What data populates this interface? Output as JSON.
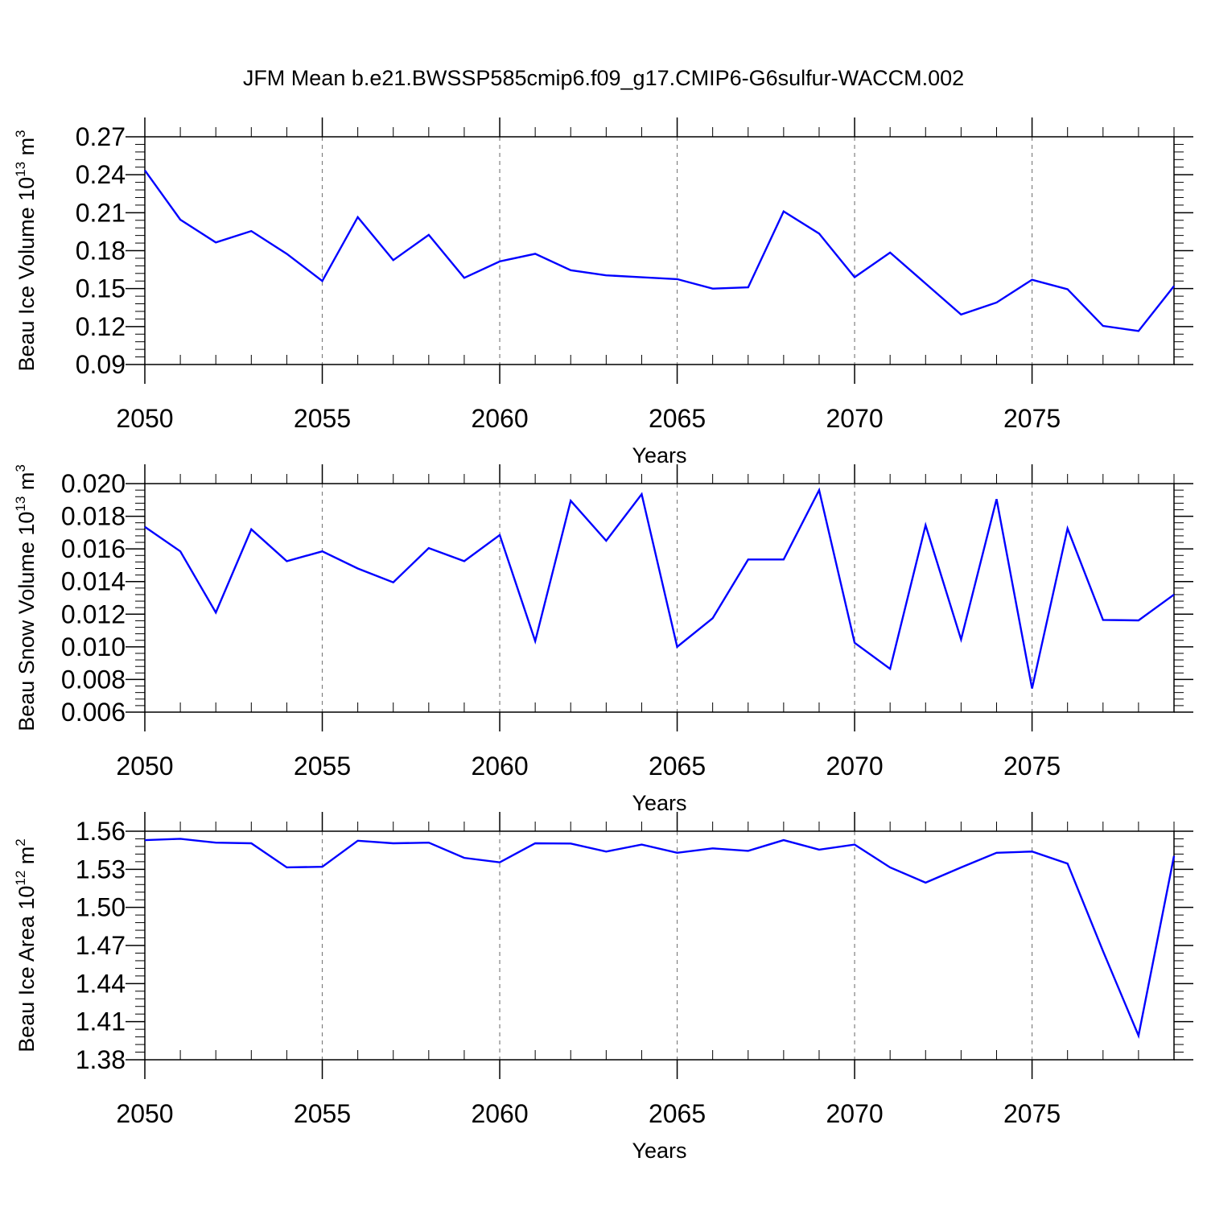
{
  "title": "JFM Mean b.e21.BWSSP585cmip6.f09_g17.CMIP6-G6sulfur-WACCM.002",
  "colors": {
    "line": "#0000ff",
    "axes": "#000000",
    "grid": "#808080"
  },
  "chart_data": [
    {
      "type": "line",
      "ylabel": {
        "main": "Beau Ice Volume 10",
        "exponent": "13",
        "unit": " m",
        "unit_exponent": "3"
      },
      "xlabel": "Years",
      "xlim": [
        2050,
        2079
      ],
      "ylim": [
        0.09,
        0.27
      ],
      "x_ticks": [
        "2050",
        "2055",
        "2060",
        "2065",
        "2070",
        "2075"
      ],
      "y_ticks": [
        "0.09",
        "0.12",
        "0.15",
        "0.18",
        "0.21",
        "0.24",
        "0.27"
      ],
      "grid": "vertical dashed at major x ticks",
      "x": [
        2050,
        2051,
        2052,
        2053,
        2054,
        2055,
        2056,
        2057,
        2058,
        2059,
        2060,
        2061,
        2062,
        2063,
        2064,
        2065,
        2066,
        2067,
        2068,
        2069,
        2070,
        2071,
        2072,
        2073,
        2074,
        2075,
        2076,
        2077,
        2078,
        2079
      ],
      "values": [
        0.2435,
        0.2045,
        0.1865,
        0.1955,
        0.1775,
        0.156,
        0.2065,
        0.1725,
        0.1925,
        0.1585,
        0.1715,
        0.1775,
        0.1645,
        0.1605,
        0.159,
        0.1575,
        0.15,
        0.151,
        0.211,
        0.1935,
        0.159,
        0.1785,
        0.154,
        0.1295,
        0.139,
        0.157,
        0.1495,
        0.1205,
        0.1165,
        0.152
      ]
    },
    {
      "type": "line",
      "ylabel": {
        "main": "Beau Snow Volume 10",
        "exponent": "13",
        "unit": " m",
        "unit_exponent": "3"
      },
      "xlabel": "Years",
      "xlim": [
        2050,
        2079
      ],
      "ylim": [
        0.006,
        0.02
      ],
      "x_ticks": [
        "2050",
        "2055",
        "2060",
        "2065",
        "2070",
        "2075"
      ],
      "y_ticks": [
        "0.006",
        "0.008",
        "0.010",
        "0.012",
        "0.014",
        "0.016",
        "0.018",
        "0.020"
      ],
      "grid": "vertical dashed at major x ticks",
      "x": [
        2050,
        2051,
        2052,
        2053,
        2054,
        2055,
        2056,
        2057,
        2058,
        2059,
        2060,
        2061,
        2062,
        2063,
        2064,
        2065,
        2066,
        2067,
        2068,
        2069,
        2070,
        2071,
        2072,
        2073,
        2074,
        2075,
        2076,
        2077,
        2078,
        2079
      ],
      "values": [
        0.01735,
        0.01585,
        0.0121,
        0.0172,
        0.01525,
        0.01585,
        0.0148,
        0.01395,
        0.01605,
        0.01525,
        0.01685,
        0.01035,
        0.01895,
        0.0165,
        0.01935,
        0.01,
        0.01175,
        0.01535,
        0.01535,
        0.0196,
        0.01025,
        0.00865,
        0.01745,
        0.01045,
        0.01905,
        0.00745,
        0.01725,
        0.01165,
        0.01162,
        0.0132
      ]
    },
    {
      "type": "line",
      "ylabel": {
        "main": "Beau Ice Area 10",
        "exponent": "12",
        "unit": " m",
        "unit_exponent": "2"
      },
      "xlabel": "Years",
      "xlim": [
        2050,
        2079
      ],
      "ylim": [
        1.38,
        1.56
      ],
      "x_ticks": [
        "2050",
        "2055",
        "2060",
        "2065",
        "2070",
        "2075"
      ],
      "y_ticks": [
        "1.38",
        "1.41",
        "1.44",
        "1.47",
        "1.50",
        "1.53",
        "1.56"
      ],
      "grid": "vertical dashed at major x ticks",
      "x": [
        2050,
        2051,
        2052,
        2053,
        2054,
        2055,
        2056,
        2057,
        2058,
        2059,
        2060,
        2061,
        2062,
        2063,
        2064,
        2065,
        2066,
        2067,
        2068,
        2069,
        2070,
        2071,
        2072,
        2073,
        2074,
        2075,
        2076,
        2077,
        2078,
        2079
      ],
      "values": [
        1.553,
        1.554,
        1.551,
        1.5505,
        1.5315,
        1.532,
        1.5525,
        1.5505,
        1.551,
        1.539,
        1.5355,
        1.5505,
        1.5503,
        1.544,
        1.5495,
        1.543,
        1.5465,
        1.5445,
        1.553,
        1.5455,
        1.5495,
        1.5315,
        1.5195,
        1.5315,
        1.543,
        1.544,
        1.5345,
        1.4655,
        1.399,
        1.5405
      ]
    }
  ]
}
